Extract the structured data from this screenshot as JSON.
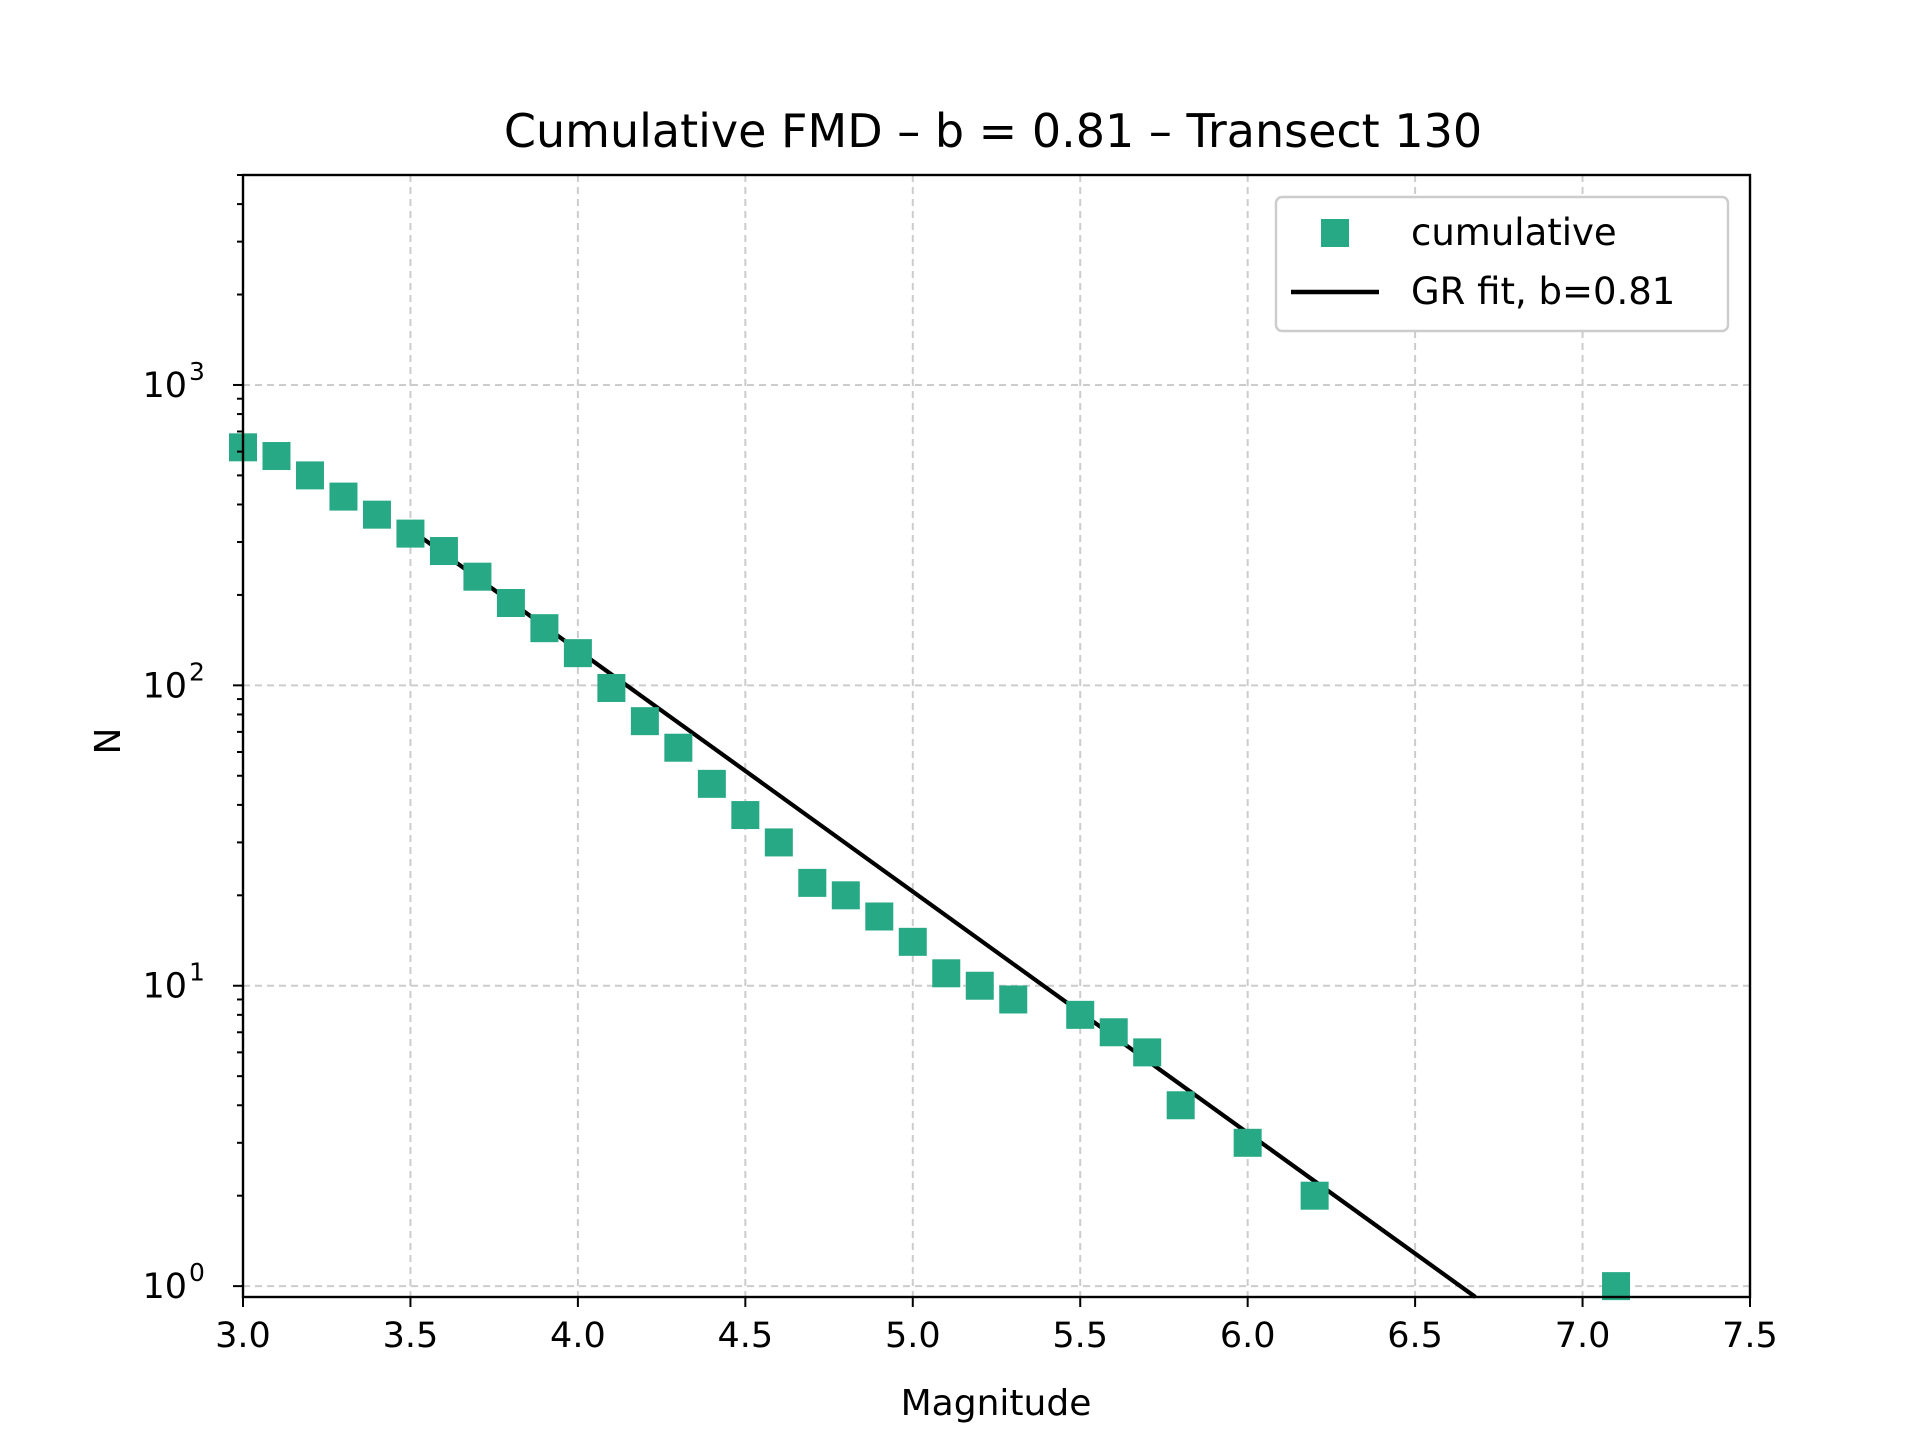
{
  "chart_data": {
    "type": "scatter",
    "title": "Cumulative FMD – b = 0.81 – Transect 130",
    "xlabel": "Magnitude",
    "ylabel": "N",
    "xlim": [
      3.0,
      7.5
    ],
    "ylim": [
      0.92,
      5000
    ],
    "yscale": "log",
    "grid": true,
    "legend_position": "top-right",
    "x_ticks": [
      "3.0",
      "3.5",
      "4.0",
      "4.5",
      "5.0",
      "5.5",
      "6.0",
      "6.5",
      "7.0",
      "7.5"
    ],
    "y_ticks": [
      {
        "value": 1,
        "base": "10",
        "exp": "0"
      },
      {
        "value": 10,
        "base": "10",
        "exp": "1"
      },
      {
        "value": 100,
        "base": "10",
        "exp": "2"
      },
      {
        "value": 1000,
        "base": "10",
        "exp": "3"
      }
    ],
    "series": [
      {
        "name": "cumulative",
        "kind": "scatter",
        "marker": "square",
        "color": "#26a984",
        "x": [
          3.0,
          3.1,
          3.2,
          3.3,
          3.4,
          3.5,
          3.6,
          3.7,
          3.8,
          3.9,
          4.0,
          4.1,
          4.2,
          4.3,
          4.4,
          4.5,
          4.6,
          4.7,
          4.8,
          4.9,
          5.0,
          5.1,
          5.2,
          5.3,
          5.5,
          5.6,
          5.7,
          5.8,
          6.0,
          6.2,
          7.1
        ],
        "y": [
          620,
          580,
          500,
          425,
          370,
          320,
          280,
          230,
          188,
          155,
          128,
          98,
          76,
          62,
          47,
          37,
          30,
          22,
          20,
          17,
          14,
          11,
          10,
          9,
          8,
          7,
          6,
          4,
          3,
          2,
          1
        ]
      },
      {
        "name": "GR fit, b=0.81",
        "kind": "line",
        "color": "#000000",
        "x": [
          3.5,
          6.68
        ],
        "y": [
          330,
          0.92
        ]
      }
    ]
  }
}
